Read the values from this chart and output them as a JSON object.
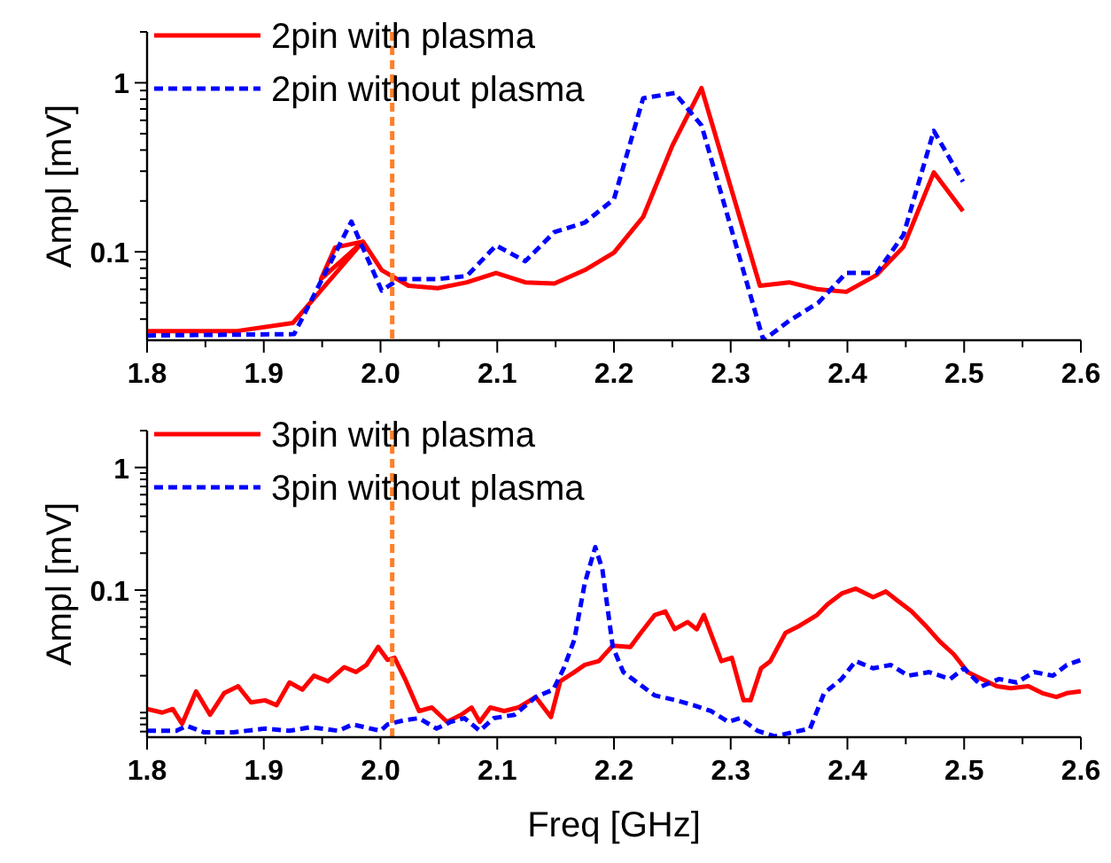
{
  "chart_data": [
    {
      "type": "line",
      "ylabel": "Ampl [mV]",
      "log": "y",
      "legend": "top left",
      "xlim": [
        1.8,
        2.6
      ],
      "ylim": [
        0.03,
        2
      ],
      "xticks": [
        1.8,
        {
          "value": 1.85,
          "label": null
        },
        1.9,
        {
          "value": 1.95,
          "label": null
        },
        {
          "value": 2.0,
          "label": "2.0"
        },
        {
          "value": 2.05,
          "label": null
        },
        2.1,
        {
          "value": 2.15,
          "label": null
        },
        2.2,
        {
          "value": 2.25,
          "label": null
        },
        2.3,
        {
          "value": 2.35,
          "label": null
        },
        2.4,
        {
          "value": 2.45,
          "label": null
        },
        2.5,
        {
          "value": 2.55,
          "label": null
        },
        2.6
      ],
      "yticks": [
        {
          "value": 0.04,
          "label": null
        },
        {
          "value": 0.05,
          "label": null
        },
        {
          "value": 0.06,
          "label": null
        },
        {
          "value": 0.07,
          "label": null
        },
        {
          "value": 0.08,
          "label": null
        },
        {
          "value": 0.09,
          "label": null
        },
        {
          "value": 0.1,
          "label": "0.1"
        },
        {
          "value": 0.2,
          "label": null
        },
        {
          "value": 0.3,
          "label": null
        },
        {
          "value": 0.4,
          "label": null
        },
        {
          "value": 0.5,
          "label": null
        },
        {
          "value": 0.6,
          "label": null
        },
        {
          "value": 0.7,
          "label": null
        },
        {
          "value": 0.8,
          "label": null
        },
        {
          "value": 0.9,
          "label": null
        },
        {
          "value": 1,
          "label": "1"
        },
        {
          "value": 2,
          "label": null
        }
      ],
      "ref_lines": [
        {
          "axis": "x",
          "value": 2.01,
          "color": "#ff7f27",
          "line_style": "dashed"
        }
      ],
      "series": [
        {
          "name": "2pin with plasma",
          "color": "#ff0000",
          "line_style": "solid",
          "x": [
            1.8,
            1.877,
            1.925,
            1.985,
            1.949,
            1.961,
            1.985,
            2.001,
            2.024,
            2.049,
            2.074,
            2.099,
            2.124,
            2.149,
            2.175,
            2.2,
            2.225,
            2.25,
            2.275,
            2.325,
            2.35,
            2.375,
            2.399,
            2.425,
            2.448,
            2.474,
            2.499
          ],
          "values": [
            0.034,
            0.034,
            0.038,
            0.115,
            0.069,
            0.106,
            0.115,
            0.078,
            0.063,
            0.061,
            0.066,
            0.075,
            0.066,
            0.065,
            0.078,
            0.099,
            0.161,
            0.425,
            0.93,
            0.063,
            0.066,
            0.06,
            0.058,
            0.073,
            0.107,
            0.295,
            0.174
          ]
        },
        {
          "name": "2pin without plasma",
          "color": "#0000ff",
          "line_style": "dashed",
          "x": [
            1.8,
            1.926,
            1.975,
            2.001,
            2.016,
            2.049,
            2.074,
            2.099,
            2.124,
            2.149,
            2.175,
            2.2,
            2.225,
            2.252,
            2.275,
            2.328,
            2.35,
            2.375,
            2.399,
            2.425,
            2.448,
            2.474,
            2.499
          ],
          "values": [
            0.032,
            0.0326,
            0.151,
            0.059,
            0.069,
            0.069,
            0.072,
            0.109,
            0.088,
            0.131,
            0.149,
            0.205,
            0.81,
            0.87,
            0.56,
            0.03,
            0.039,
            0.05,
            0.075,
            0.075,
            0.126,
            0.52,
            0.26
          ]
        }
      ]
    },
    {
      "type": "line",
      "xlabel": "Freq [GHz]",
      "ylabel": "Ampl [mV]",
      "log": "y",
      "legend": "top left",
      "xlim": [
        1.8,
        2.6
      ],
      "ylim": [
        0.0063,
        2
      ],
      "xticks": [
        1.8,
        {
          "value": 1.85,
          "label": null
        },
        1.9,
        {
          "value": 1.95,
          "label": null
        },
        {
          "value": 2.0,
          "label": "2.0"
        },
        {
          "value": 2.05,
          "label": null
        },
        2.1,
        {
          "value": 2.15,
          "label": null
        },
        2.2,
        {
          "value": 2.25,
          "label": null
        },
        2.3,
        {
          "value": 2.35,
          "label": null
        },
        2.4,
        {
          "value": 2.45,
          "label": null
        },
        2.5,
        {
          "value": 2.55,
          "label": null
        },
        2.6
      ],
      "yticks": [
        {
          "value": 0.007,
          "label": null
        },
        {
          "value": 0.008,
          "label": null
        },
        {
          "value": 0.009,
          "label": null
        },
        {
          "value": 0.01,
          "label": null
        },
        {
          "value": 0.02,
          "label": null
        },
        {
          "value": 0.03,
          "label": null
        },
        {
          "value": 0.04,
          "label": null
        },
        {
          "value": 0.05,
          "label": null
        },
        {
          "value": 0.06,
          "label": null
        },
        {
          "value": 0.07,
          "label": null
        },
        {
          "value": 0.08,
          "label": null
        },
        {
          "value": 0.09,
          "label": null
        },
        {
          "value": 0.1,
          "label": "0.1"
        },
        {
          "value": 0.2,
          "label": null
        },
        {
          "value": 0.3,
          "label": null
        },
        {
          "value": 0.4,
          "label": null
        },
        {
          "value": 0.5,
          "label": null
        },
        {
          "value": 0.6,
          "label": null
        },
        {
          "value": 0.7,
          "label": null
        },
        {
          "value": 0.8,
          "label": null
        },
        {
          "value": 0.9,
          "label": null
        },
        {
          "value": 1,
          "label": "1"
        },
        {
          "value": 2,
          "label": null
        }
      ],
      "ref_lines": [
        {
          "axis": "x",
          "value": 2.01,
          "color": "#ff7f27",
          "line_style": "dashed"
        }
      ],
      "series": [
        {
          "name": "3pin with plasma",
          "color": "#ff0000",
          "line_style": "solid",
          "x": [
            1.8,
            1.813,
            1.822,
            1.83,
            1.842,
            1.854,
            1.866,
            1.878,
            1.889,
            1.901,
            1.911,
            1.922,
            1.933,
            1.943,
            1.955,
            1.969,
            1.979,
            1.988,
            1.998,
            2.006,
            2.012,
            2.021,
            2.033,
            2.044,
            2.057,
            2.069,
            2.078,
            2.085,
            2.094,
            2.106,
            2.118,
            2.133,
            2.146,
            2.154,
            2.166,
            2.175,
            2.187,
            2.199,
            2.214,
            2.223,
            2.235,
            2.244,
            2.252,
            2.263,
            2.271,
            2.277,
            2.292,
            2.301,
            2.311,
            2.317,
            2.326,
            2.334,
            2.347,
            2.359,
            2.374,
            2.383,
            2.395,
            2.407,
            2.422,
            2.433,
            2.443,
            2.455,
            2.467,
            2.479,
            2.491,
            2.503,
            2.515,
            2.528,
            2.54,
            2.555,
            2.567,
            2.579,
            2.588,
            2.6
          ],
          "values": [
            0.0107,
            0.01,
            0.0107,
            0.0081,
            0.0149,
            0.0096,
            0.0144,
            0.0164,
            0.0121,
            0.0126,
            0.0115,
            0.0176,
            0.0154,
            0.02,
            0.018,
            0.0235,
            0.0214,
            0.0245,
            0.0343,
            0.0269,
            0.028,
            0.0188,
            0.0103,
            0.011,
            0.0084,
            0.0096,
            0.011,
            0.0084,
            0.011,
            0.0103,
            0.011,
            0.0134,
            0.0092,
            0.018,
            0.0214,
            0.0245,
            0.0263,
            0.0352,
            0.0343,
            0.0448,
            0.0626,
            0.0669,
            0.0479,
            0.0548,
            0.0479,
            0.0626,
            0.0263,
            0.028,
            0.0126,
            0.0126,
            0.023,
            0.0263,
            0.0448,
            0.0512,
            0.0626,
            0.0765,
            0.0935,
            0.1027,
            0.0875,
            0.0973,
            0.0818,
            0.0669,
            0.0512,
            0.0381,
            0.03,
            0.0214,
            0.0188,
            0.0164,
            0.0158,
            0.0164,
            0.0144,
            0.0134,
            0.0144,
            0.0149
          ]
        },
        {
          "name": "3pin without plasma",
          "color": "#0000ff",
          "line_style": "dashed",
          "x": [
            1.8,
            1.825,
            1.834,
            1.849,
            1.874,
            1.901,
            1.922,
            1.94,
            1.964,
            1.976,
            2.0,
            2.006,
            2.021,
            2.033,
            2.048,
            2.06,
            2.072,
            2.085,
            2.097,
            2.115,
            2.133,
            2.148,
            2.157,
            2.166,
            2.175,
            2.184,
            2.19,
            2.199,
            2.208,
            2.22,
            2.235,
            2.253,
            2.268,
            2.283,
            2.298,
            2.308,
            2.323,
            2.338,
            2.353,
            2.368,
            2.38,
            2.395,
            2.407,
            2.422,
            2.437,
            2.452,
            2.47,
            2.488,
            2.5,
            2.515,
            2.53,
            2.545,
            2.56,
            2.576,
            2.588,
            2.6
          ],
          "values": [
            0.0071,
            0.0071,
            0.0078,
            0.0069,
            0.0069,
            0.0074,
            0.0071,
            0.0076,
            0.0071,
            0.008,
            0.0071,
            0.008,
            0.0087,
            0.009,
            0.0074,
            0.0084,
            0.009,
            0.0071,
            0.009,
            0.0096,
            0.0134,
            0.0154,
            0.023,
            0.0392,
            0.114,
            0.224,
            0.149,
            0.0343,
            0.0214,
            0.0176,
            0.0138,
            0.0126,
            0.0115,
            0.0103,
            0.0084,
            0.009,
            0.0071,
            0.0064,
            0.0069,
            0.0074,
            0.0144,
            0.0188,
            0.0263,
            0.023,
            0.0245,
            0.02,
            0.0214,
            0.0188,
            0.023,
            0.0164,
            0.0188,
            0.0176,
            0.0214,
            0.02,
            0.0245,
            0.0269
          ]
        }
      ]
    }
  ]
}
